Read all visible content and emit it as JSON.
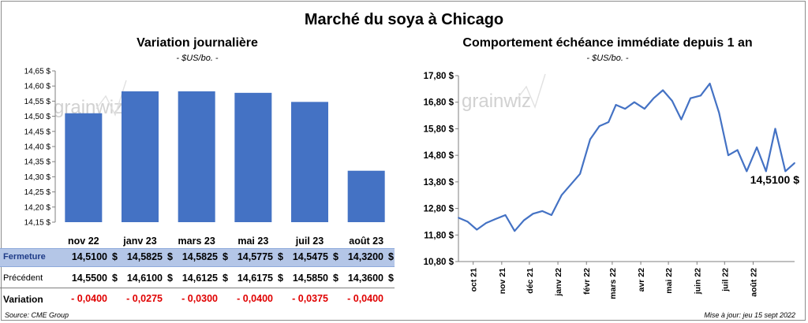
{
  "page": {
    "title": "Marché du soya à Chicago"
  },
  "left_chart": {
    "title": "Variation  journalière",
    "subtitle": "- $US/bo. -"
  },
  "right_chart": {
    "title": "Comportement  échéance immédiate depuis 1 an",
    "subtitle": "- $US/bo. -"
  },
  "watermark": "grainwiz",
  "table": {
    "rows": [
      {
        "label": "Fermeture",
        "values": [
          "14,5100",
          "14,5825",
          "14,5825",
          "14,5775",
          "14,5475",
          "14,3200"
        ],
        "unit": "$"
      },
      {
        "label": "Précédent",
        "values": [
          "14,5500",
          "14,6100",
          "14,6125",
          "14,6175",
          "14,5850",
          "14,3600"
        ],
        "unit": "$"
      },
      {
        "label": "Variation",
        "values": [
          "- 0,0400",
          "- 0,0275",
          "- 0,0300",
          "- 0,0400",
          "- 0,0375",
          "- 0,0400"
        ]
      }
    ]
  },
  "footer": {
    "source": "Source: CME Group",
    "updated": "Mise à jour: jeu 15 sept 2022"
  },
  "colors": {
    "bar": "#4472c4",
    "line": "#4472c4",
    "negative": "#e00000",
    "highlight_row": "#b4c6e7"
  },
  "chart_data": [
    {
      "type": "bar",
      "title": "Variation  journalière",
      "subtitle": "- $US/bo. -",
      "categories": [
        "nov 22",
        "janv 23",
        "mars 23",
        "mai 23",
        "juil 23",
        "août 23"
      ],
      "values": [
        14.51,
        14.5825,
        14.5825,
        14.5775,
        14.5475,
        14.32
      ],
      "ylim": [
        14.15,
        14.65
      ],
      "yticks": [
        "14,15 $",
        "14,20 $",
        "14,25 $",
        "14,30 $",
        "14,35 $",
        "14,40 $",
        "14,45 $",
        "14,50 $",
        "14,55 $",
        "14,60 $",
        "14,65 $"
      ],
      "grid": false
    },
    {
      "type": "line",
      "title": "Comportement  échéance immédiate depuis 1 an",
      "subtitle": "- $US/bo. -",
      "x_labels": [
        "oct 21",
        "nov 21",
        "déc 21",
        "janv 22",
        "févr 22",
        "mars 22",
        "avr 22",
        "mai 22",
        "juin 22",
        "juil 22",
        "août 22"
      ],
      "ylim": [
        10.8,
        17.8
      ],
      "yticks": [
        "10,80 $",
        "11,80 $",
        "12,80 $",
        "13,80 $",
        "14,80 $",
        "15,80 $",
        "16,80 $",
        "17,80 $"
      ],
      "last_value_label": "14,5100 $",
      "x": [
        "2021-09-15",
        "2021-09-25",
        "2021-10-05",
        "2021-10-15",
        "2021-10-25",
        "2021-11-05",
        "2021-11-15",
        "2021-11-25",
        "2021-12-05",
        "2021-12-15",
        "2021-12-25",
        "2022-01-05",
        "2022-01-15",
        "2022-01-25",
        "2022-02-05",
        "2022-02-15",
        "2022-02-25",
        "2022-03-05",
        "2022-03-15",
        "2022-03-25",
        "2022-04-05",
        "2022-04-15",
        "2022-04-25",
        "2022-05-05",
        "2022-05-15",
        "2022-05-25",
        "2022-06-05",
        "2022-06-15",
        "2022-06-25",
        "2022-07-05",
        "2022-07-15",
        "2022-07-25",
        "2022-08-05",
        "2022-08-15",
        "2022-08-25",
        "2022-09-05",
        "2022-09-15"
      ],
      "y": [
        12.45,
        12.3,
        12.0,
        12.25,
        12.4,
        12.55,
        11.95,
        12.35,
        12.6,
        12.7,
        12.55,
        13.3,
        13.7,
        14.1,
        15.4,
        15.9,
        16.05,
        16.7,
        16.55,
        16.8,
        16.55,
        16.95,
        17.25,
        16.85,
        16.15,
        16.95,
        17.05,
        17.5,
        16.4,
        14.8,
        15.0,
        14.2,
        15.1,
        14.2,
        15.8,
        14.2,
        14.51
      ],
      "grid": false
    }
  ]
}
